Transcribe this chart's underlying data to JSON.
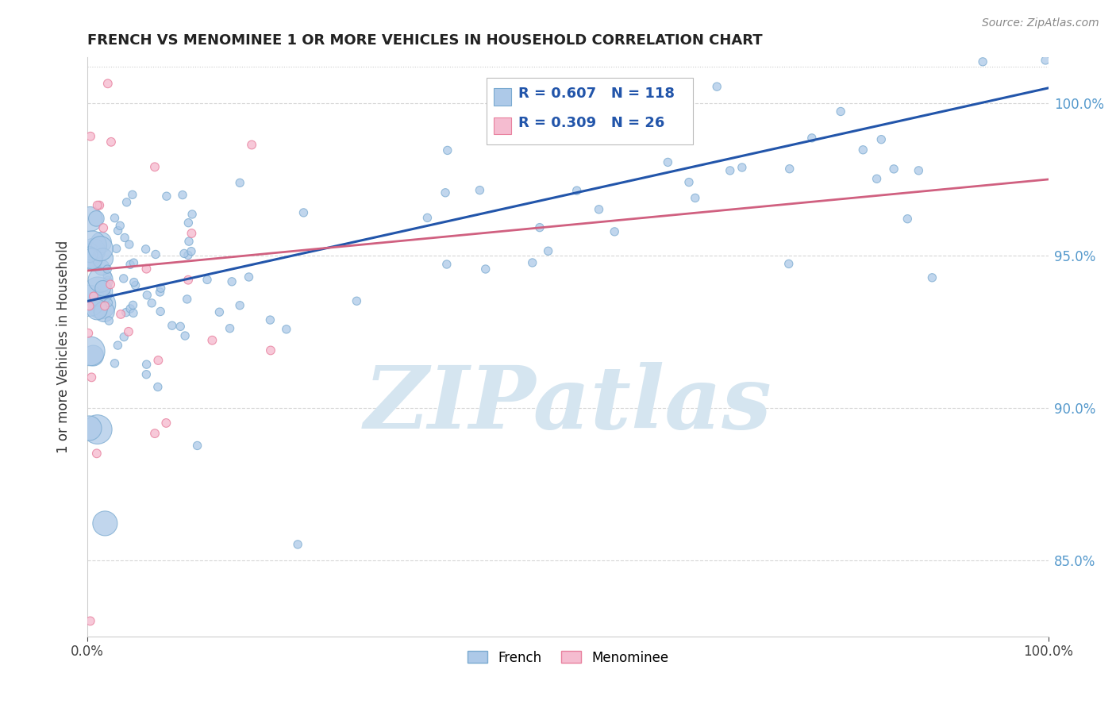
{
  "title": "FRENCH VS MENOMINEE 1 OR MORE VEHICLES IN HOUSEHOLD CORRELATION CHART",
  "source": "Source: ZipAtlas.com",
  "ylabel": "1 or more Vehicles in Household",
  "xlim": [
    0.0,
    100.0
  ],
  "ylim": [
    82.5,
    101.5
  ],
  "yticks": [
    85.0,
    90.0,
    95.0,
    100.0
  ],
  "ytick_labels": [
    "85.0%",
    "90.0%",
    "95.0%",
    "100.0%"
  ],
  "french_R": 0.607,
  "french_N": 118,
  "menominee_R": 0.309,
  "menominee_N": 26,
  "french_color": "#adc9e8",
  "french_edge_color": "#7aaad0",
  "menominee_color": "#f5bcd0",
  "menominee_edge_color": "#e8809e",
  "trendline_french_color": "#2255aa",
  "trendline_menominee_color": "#d06080",
  "watermark_color": "#d5e5f0",
  "background_color": "#ffffff",
  "french_trend_y0": 93.5,
  "french_trend_y1": 100.5,
  "menominee_trend_y0": 94.5,
  "menominee_trend_y1": 97.5,
  "seed": 99
}
